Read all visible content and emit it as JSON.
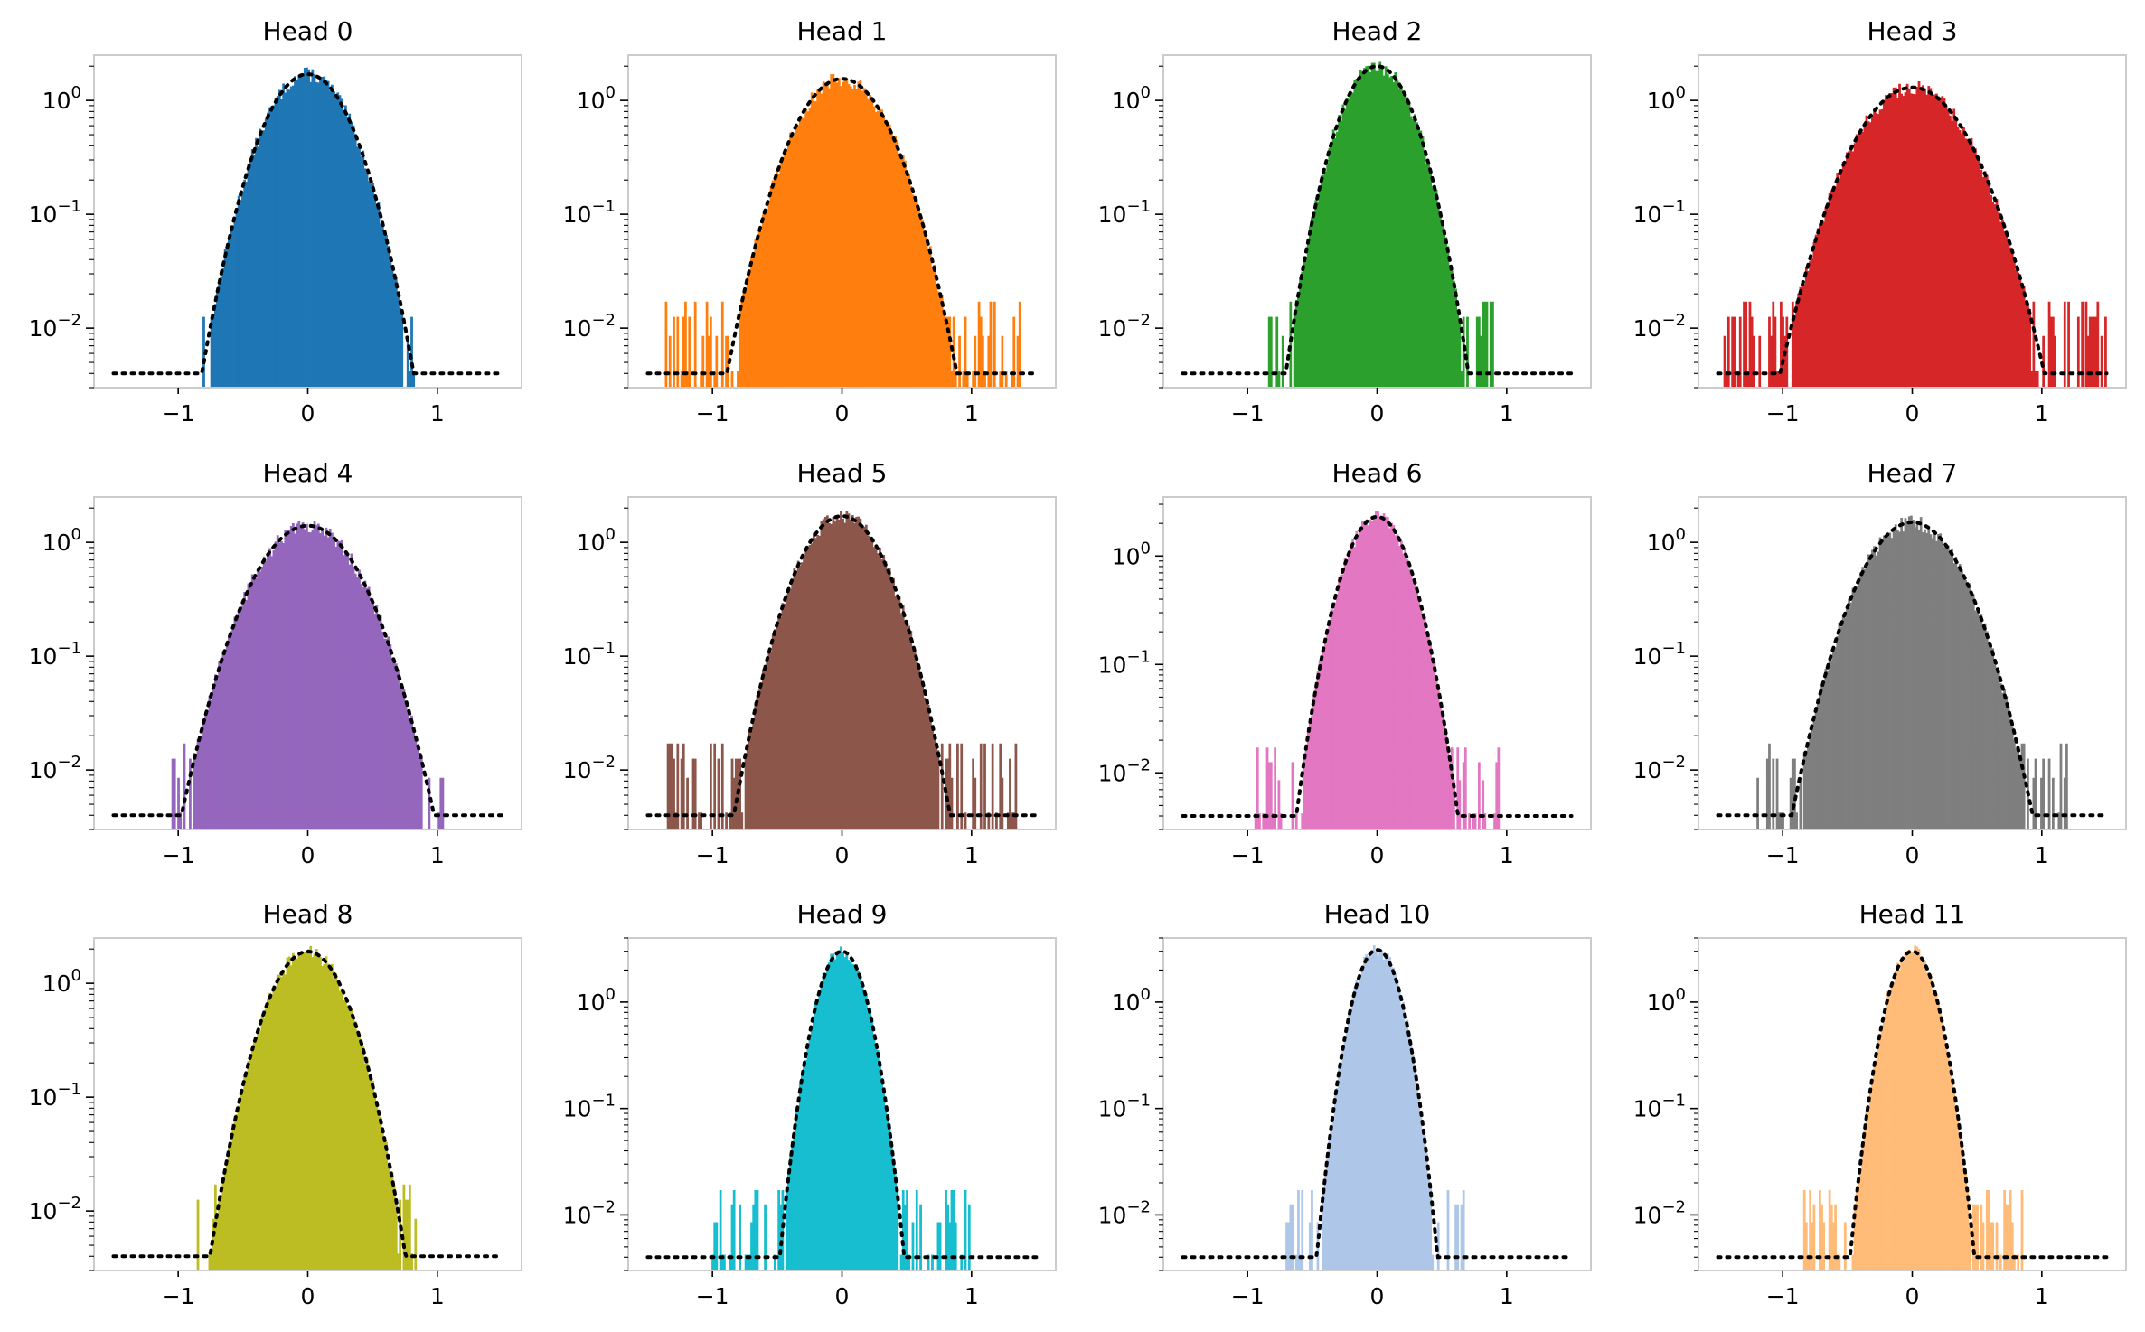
{
  "chart_data": [
    {
      "type": "histogram",
      "title": "Head 0",
      "color": "#1f77b4",
      "center": 0.0,
      "sigma": 0.235,
      "peak": 1.7,
      "spread": 0.82,
      "x_ticks": [
        "−1",
        "0",
        "1"
      ],
      "xlim": [
        -1.65,
        1.65
      ],
      "y_scale": "log",
      "ylim": [
        0.003,
        2.5
      ],
      "y_ticks": [
        "10^0",
        "10^-1",
        "10^-2"
      ],
      "fit_line": "dotted black",
      "grid": false
    },
    {
      "type": "histogram",
      "title": "Head 1",
      "color": "#ff7f0e",
      "center": 0.0,
      "sigma": 0.257,
      "peak": 1.55,
      "spread": 1.38,
      "x_ticks": [
        "−1",
        "0",
        "1"
      ],
      "xlim": [
        -1.65,
        1.65
      ],
      "y_scale": "log",
      "ylim": [
        0.003,
        2.5
      ],
      "y_ticks": [
        "10^0",
        "10^-1",
        "10^-2"
      ],
      "fit_line": "dotted black",
      "grid": false
    },
    {
      "type": "histogram",
      "title": "Head 2",
      "color": "#2ca02c",
      "center": 0.0,
      "sigma": 0.2,
      "peak": 2.0,
      "spread": 0.9,
      "x_ticks": [
        "−1",
        "0",
        "1"
      ],
      "xlim": [
        -1.65,
        1.65
      ],
      "y_scale": "log",
      "ylim": [
        0.003,
        2.5
      ],
      "y_ticks": [
        "10^0",
        "10^-1",
        "10^-2"
      ],
      "fit_line": "dotted black",
      "grid": false
    },
    {
      "type": "histogram",
      "title": "Head 3",
      "color": "#d62728",
      "center": 0.0,
      "sigma": 0.3,
      "peak": 1.3,
      "spread": 1.5,
      "x_ticks": [
        "−1",
        "0",
        "1"
      ],
      "xlim": [
        -1.65,
        1.65
      ],
      "y_scale": "log",
      "ylim": [
        0.003,
        2.5
      ],
      "y_ticks": [
        "10^0",
        "10^-1",
        "10^-2"
      ],
      "fit_line": "dotted black",
      "grid": false
    },
    {
      "type": "histogram",
      "title": "Head 4",
      "color": "#9467bd",
      "center": 0.0,
      "sigma": 0.285,
      "peak": 1.4,
      "spread": 1.05,
      "x_ticks": [
        "−1",
        "0",
        "1"
      ],
      "xlim": [
        -1.65,
        1.65
      ],
      "y_scale": "log",
      "ylim": [
        0.003,
        2.5
      ],
      "y_ticks": [
        "10^0",
        "10^-1",
        "10^-2"
      ],
      "fit_line": "dotted black",
      "grid": false
    },
    {
      "type": "histogram",
      "title": "Head 5",
      "color": "#8c564b",
      "center": 0.0,
      "sigma": 0.24,
      "peak": 1.7,
      "spread": 1.35,
      "x_ticks": [
        "−1",
        "0",
        "1"
      ],
      "xlim": [
        -1.65,
        1.65
      ],
      "y_scale": "log",
      "ylim": [
        0.003,
        2.5
      ],
      "y_ticks": [
        "10^0",
        "10^-1",
        "10^-2"
      ],
      "fit_line": "dotted black",
      "grid": false
    },
    {
      "type": "histogram",
      "title": "Head 6",
      "color": "#e377c2",
      "center": 0.0,
      "sigma": 0.175,
      "peak": 2.3,
      "spread": 0.95,
      "x_ticks": [
        "−1",
        "0",
        "1"
      ],
      "xlim": [
        -1.65,
        1.65
      ],
      "y_scale": "log",
      "ylim": [
        0.003,
        3.5
      ],
      "y_ticks": [
        "10^0",
        "10^-1",
        "10^-2"
      ],
      "fit_line": "dotted black",
      "grid": false
    },
    {
      "type": "histogram",
      "title": "Head 7",
      "color": "#7f7f7f",
      "center": 0.0,
      "sigma": 0.27,
      "peak": 1.5,
      "spread": 1.2,
      "x_ticks": [
        "−1",
        "0",
        "1"
      ],
      "xlim": [
        -1.65,
        1.65
      ],
      "y_scale": "log",
      "ylim": [
        0.003,
        2.5
      ],
      "y_ticks": [
        "10^0",
        "10^-1",
        "10^-2"
      ],
      "fit_line": "dotted black",
      "grid": false
    },
    {
      "type": "histogram",
      "title": "Head 8",
      "color": "#bcbd22",
      "center": 0.0,
      "sigma": 0.215,
      "peak": 1.9,
      "spread": 0.85,
      "x_ticks": [
        "−1",
        "0",
        "1"
      ],
      "xlim": [
        -1.65,
        1.65
      ],
      "y_scale": "log",
      "ylim": [
        0.003,
        2.5
      ],
      "y_ticks": [
        "10^0",
        "10^-1",
        "10^-2"
      ],
      "fit_line": "dotted black",
      "grid": false
    },
    {
      "type": "histogram",
      "title": "Head 9",
      "color": "#17becf",
      "center": 0.0,
      "sigma": 0.132,
      "peak": 3.0,
      "spread": 1.0,
      "x_ticks": [
        "−1",
        "0",
        "1"
      ],
      "xlim": [
        -1.65,
        1.65
      ],
      "y_scale": "log",
      "ylim": [
        0.003,
        4.0
      ],
      "y_ticks": [
        "10^0",
        "10^-1",
        "10^-2"
      ],
      "fit_line": "dotted black",
      "grid": false
    },
    {
      "type": "histogram",
      "title": "Head 10",
      "color": "#aec7e8",
      "center": 0.0,
      "sigma": 0.128,
      "peak": 3.1,
      "spread": 0.7,
      "x_ticks": [
        "−1",
        "0",
        "1"
      ],
      "xlim": [
        -1.65,
        1.65
      ],
      "y_scale": "log",
      "ylim": [
        0.003,
        4.0
      ],
      "y_ticks": [
        "10^0",
        "10^-1",
        "10^-2"
      ],
      "fit_line": "dotted black",
      "grid": false
    },
    {
      "type": "histogram",
      "title": "Head 11",
      "color": "#ffbb78",
      "center": 0.0,
      "sigma": 0.132,
      "peak": 3.0,
      "spread": 0.85,
      "x_ticks": [
        "−1",
        "0",
        "1"
      ],
      "xlim": [
        -1.65,
        1.65
      ],
      "y_scale": "log",
      "ylim": [
        0.003,
        4.0
      ],
      "y_ticks": [
        "10^0",
        "10^-1",
        "10^-2"
      ],
      "fit_line": "dotted black",
      "grid": false
    }
  ]
}
